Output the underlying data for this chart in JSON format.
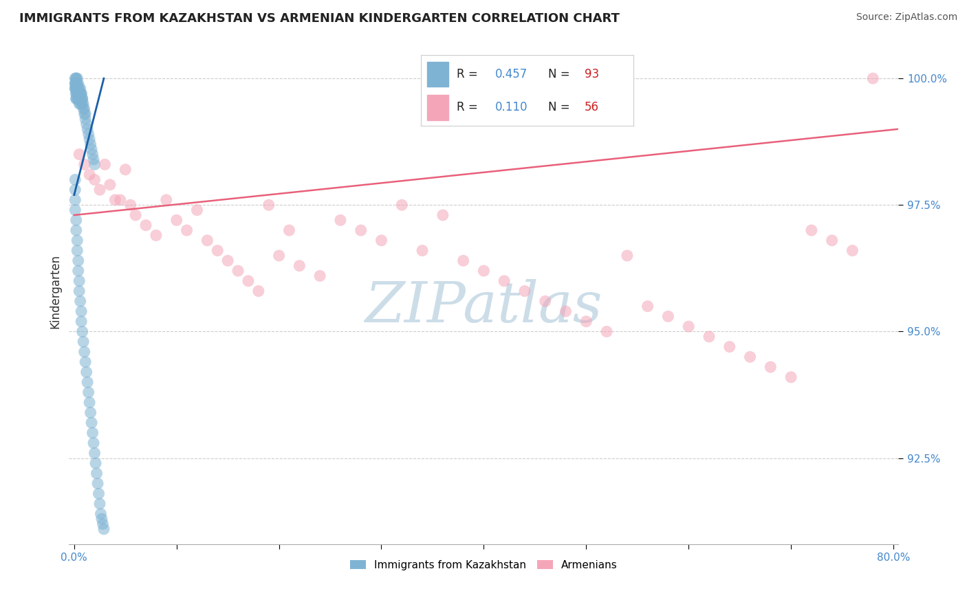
{
  "title": "IMMIGRANTS FROM KAZAKHSTAN VS ARMENIAN KINDERGARTEN CORRELATION CHART",
  "source": "Source: ZipAtlas.com",
  "ylabel": "Kindergarten",
  "ytick_labels": [
    "92.5%",
    "95.0%",
    "97.5%",
    "100.0%"
  ],
  "ytick_values": [
    0.925,
    0.95,
    0.975,
    1.0
  ],
  "xlim": [
    -0.005,
    0.805
  ],
  "ylim": [
    0.908,
    1.008
  ],
  "color_blue": "#7fb3d3",
  "color_pink": "#f4a6b8",
  "color_blue_line": "#1a5fa8",
  "color_pink_line": "#e8607a",
  "color_title": "#222222",
  "color_source": "#555555",
  "color_ytick": "#4488cc",
  "color_xtick": "#4488cc",
  "watermark": "ZIPatlas",
  "watermark_color": "#ccdde8",
  "grid_color": "#cccccc",
  "legend_border": "#cccccc",
  "blue_x": [
    0.001,
    0.001,
    0.001,
    0.001,
    0.001,
    0.002,
    0.002,
    0.002,
    0.002,
    0.002,
    0.002,
    0.002,
    0.002,
    0.002,
    0.002,
    0.003,
    0.003,
    0.003,
    0.003,
    0.003,
    0.003,
    0.004,
    0.004,
    0.004,
    0.004,
    0.004,
    0.005,
    0.005,
    0.005,
    0.005,
    0.006,
    0.006,
    0.006,
    0.006,
    0.007,
    0.007,
    0.007,
    0.007,
    0.008,
    0.008,
    0.008,
    0.009,
    0.009,
    0.01,
    0.01,
    0.011,
    0.011,
    0.012,
    0.013,
    0.014,
    0.015,
    0.016,
    0.017,
    0.018,
    0.019,
    0.02,
    0.001,
    0.001,
    0.001,
    0.001,
    0.002,
    0.002,
    0.003,
    0.003,
    0.004,
    0.004,
    0.005,
    0.005,
    0.006,
    0.007,
    0.007,
    0.008,
    0.009,
    0.01,
    0.011,
    0.012,
    0.013,
    0.014,
    0.015,
    0.016,
    0.017,
    0.018,
    0.019,
    0.02,
    0.021,
    0.022,
    0.023,
    0.024,
    0.025,
    0.026,
    0.027,
    0.028,
    0.029
  ],
  "blue_y": [
    1.0,
    0.999,
    0.999,
    0.998,
    0.998,
    1.0,
    1.0,
    0.999,
    0.999,
    0.998,
    0.998,
    0.997,
    0.997,
    0.996,
    0.996,
    1.0,
    0.999,
    0.998,
    0.998,
    0.997,
    0.996,
    0.999,
    0.998,
    0.997,
    0.997,
    0.996,
    0.998,
    0.997,
    0.996,
    0.995,
    0.998,
    0.997,
    0.996,
    0.995,
    0.997,
    0.997,
    0.996,
    0.995,
    0.996,
    0.996,
    0.995,
    0.995,
    0.994,
    0.994,
    0.993,
    0.993,
    0.992,
    0.991,
    0.99,
    0.989,
    0.988,
    0.987,
    0.986,
    0.985,
    0.984,
    0.983,
    0.98,
    0.978,
    0.976,
    0.974,
    0.972,
    0.97,
    0.968,
    0.966,
    0.964,
    0.962,
    0.96,
    0.958,
    0.956,
    0.954,
    0.952,
    0.95,
    0.948,
    0.946,
    0.944,
    0.942,
    0.94,
    0.938,
    0.936,
    0.934,
    0.932,
    0.93,
    0.928,
    0.926,
    0.924,
    0.922,
    0.92,
    0.918,
    0.916,
    0.914,
    0.913,
    0.912,
    0.911
  ],
  "pink_x": [
    0.005,
    0.01,
    0.015,
    0.02,
    0.025,
    0.03,
    0.035,
    0.04,
    0.045,
    0.05,
    0.055,
    0.06,
    0.07,
    0.08,
    0.09,
    0.1,
    0.11,
    0.12,
    0.13,
    0.14,
    0.15,
    0.16,
    0.17,
    0.18,
    0.19,
    0.2,
    0.21,
    0.22,
    0.24,
    0.26,
    0.28,
    0.3,
    0.32,
    0.34,
    0.36,
    0.38,
    0.4,
    0.42,
    0.44,
    0.46,
    0.48,
    0.5,
    0.52,
    0.54,
    0.56,
    0.58,
    0.6,
    0.62,
    0.64,
    0.66,
    0.68,
    0.7,
    0.72,
    0.74,
    0.76,
    0.78
  ],
  "pink_y": [
    0.985,
    0.983,
    0.981,
    0.98,
    0.978,
    0.983,
    0.979,
    0.976,
    0.976,
    0.982,
    0.975,
    0.973,
    0.971,
    0.969,
    0.976,
    0.972,
    0.97,
    0.974,
    0.968,
    0.966,
    0.964,
    0.962,
    0.96,
    0.958,
    0.975,
    0.965,
    0.97,
    0.963,
    0.961,
    0.972,
    0.97,
    0.968,
    0.975,
    0.966,
    0.973,
    0.964,
    0.962,
    0.96,
    0.958,
    0.956,
    0.954,
    0.952,
    0.95,
    0.965,
    0.955,
    0.953,
    0.951,
    0.949,
    0.947,
    0.945,
    0.943,
    0.941,
    0.97,
    0.968,
    0.966,
    1.0
  ],
  "blue_line_x": [
    0.0,
    0.029
  ],
  "blue_line_y": [
    0.977,
    1.0
  ],
  "pink_line_x": [
    0.0,
    0.805
  ],
  "pink_line_y": [
    0.973,
    0.99
  ]
}
